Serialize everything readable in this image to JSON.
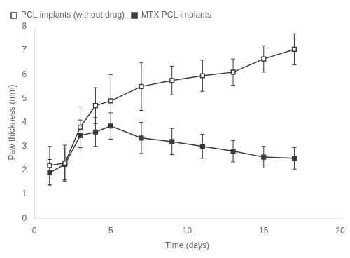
{
  "chart_data": {
    "type": "line",
    "xlabel": "Time (days)",
    "ylabel": "Paw thickness (mm)",
    "x": [
      1,
      2,
      3,
      4,
      5,
      7,
      9,
      11,
      13,
      15,
      17
    ],
    "series": [
      {
        "name": "PCL implants (without drug)",
        "color": "#3a3a3a",
        "marker": "open_square",
        "line_style": "solid",
        "values": [
          2.2,
          2.3,
          3.8,
          4.7,
          4.9,
          5.5,
          5.75,
          5.95,
          6.1,
          6.65,
          7.05
        ],
        "yerr": [
          0.8,
          0.75,
          0.85,
          0.75,
          1.1,
          1.0,
          0.6,
          0.65,
          0.55,
          0.55,
          0.65
        ]
      },
      {
        "name": "MTX PCL implants",
        "color": "#3a3a3a",
        "marker": "square",
        "line_style": "solid",
        "values": [
          1.9,
          2.25,
          3.45,
          3.6,
          3.85,
          3.35,
          3.2,
          3.0,
          2.8,
          2.55,
          2.5
        ],
        "yerr": [
          0.55,
          0.65,
          0.65,
          0.6,
          0.55,
          0.65,
          0.55,
          0.5,
          0.45,
          0.45,
          0.45
        ]
      }
    ],
    "xlim": [
      0,
      20
    ],
    "ylim": [
      0,
      8
    ],
    "xticks": [
      0,
      5,
      10,
      15,
      20
    ],
    "yticks": [
      0,
      1,
      2,
      3,
      4,
      5,
      6,
      7,
      8
    ],
    "grid": false,
    "legend": "upper left"
  }
}
